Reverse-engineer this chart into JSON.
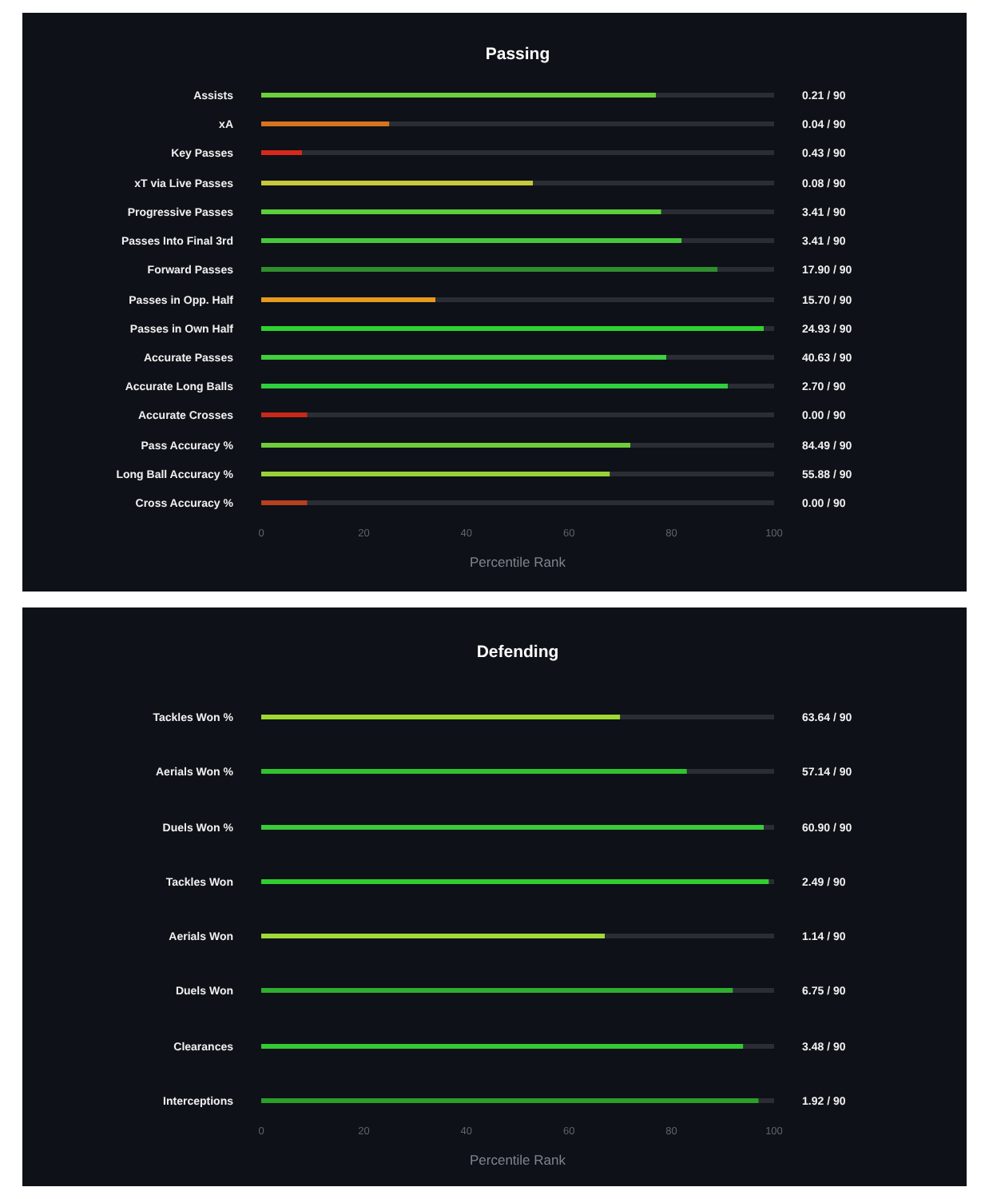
{
  "chart_data": [
    {
      "type": "bar",
      "title": "Passing",
      "orientation": "horizontal",
      "stacked": true,
      "xlabel": "Percentile Rank",
      "xlim": [
        0,
        100
      ],
      "xticks": [
        0,
        20,
        40,
        60,
        80,
        100
      ],
      "categories": [
        "Assists",
        "xA",
        "Key Passes",
        "xT via Live Passes",
        "Progressive Passes",
        "Passes Into Final 3rd",
        "Forward Passes",
        "Passes in Opp. Half",
        "Passes in Own Half",
        "Accurate Passes",
        "Accurate Long Balls",
        "Accurate Crosses",
        "Pass Accuracy %",
        "Long Ball Accuracy %",
        "Cross Accuracy %"
      ],
      "series": [
        {
          "values": [
            77,
            25,
            8,
            53,
            78,
            82,
            89,
            34,
            98,
            79,
            91,
            9,
            72,
            68,
            9
          ],
          "colors": [
            "#6ccf3c",
            "#d9731f",
            "#d8281a",
            "#c8c83a",
            "#5ccf3b",
            "#45c93b",
            "#2f8f2f",
            "#e69a1f",
            "#2fd32f",
            "#3fcf3f",
            "#2fcf3f",
            "#c8281a",
            "#6fcc3a",
            "#9ad03a",
            "#b8401f"
          ]
        },
        {
          "color": "#2a2d34",
          "values": [
            23,
            75,
            92,
            47,
            22,
            18,
            11,
            66,
            2,
            21,
            9,
            91,
            28,
            32,
            91
          ]
        }
      ],
      "annotations": [
        "0.21 / 90",
        "0.04 / 90",
        "0.43 / 90",
        "0.08 / 90",
        "3.41 / 90",
        "3.41 / 90",
        "17.90 / 90",
        "15.70 / 90",
        "24.93 / 90",
        "40.63 / 90",
        "2.70 / 90",
        "0.00 / 90",
        "84.49 / 90",
        "55.88 / 90",
        "0.00 / 90"
      ]
    },
    {
      "type": "bar",
      "title": "Defending",
      "orientation": "horizontal",
      "stacked": true,
      "xlabel": "Percentile Rank",
      "xlim": [
        0,
        100
      ],
      "xticks": [
        0,
        20,
        40,
        60,
        80,
        100
      ],
      "categories": [
        "Tackles Won %",
        "Aerials Won %",
        "Duels Won %",
        "Tackles Won",
        "Aerials Won",
        "Duels Won",
        "Clearances",
        "Interceptions"
      ],
      "series": [
        {
          "values": [
            70,
            83,
            98,
            99,
            67,
            92,
            94,
            97
          ],
          "colors": [
            "#9fd831",
            "#2fc32f",
            "#3acb3a",
            "#2fcf2f",
            "#a0d83a",
            "#2fae2f",
            "#35c935",
            "#2a9f2a"
          ]
        },
        {
          "color": "#2a2d34",
          "values": [
            30,
            17,
            2,
            1,
            33,
            8,
            6,
            3
          ]
        }
      ],
      "annotations": [
        "63.64 / 90",
        "57.14 / 90",
        "60.90 / 90",
        "2.49 / 90",
        "1.14 / 90",
        "6.75 / 90",
        "3.48 / 90",
        "1.92 / 90"
      ]
    }
  ]
}
